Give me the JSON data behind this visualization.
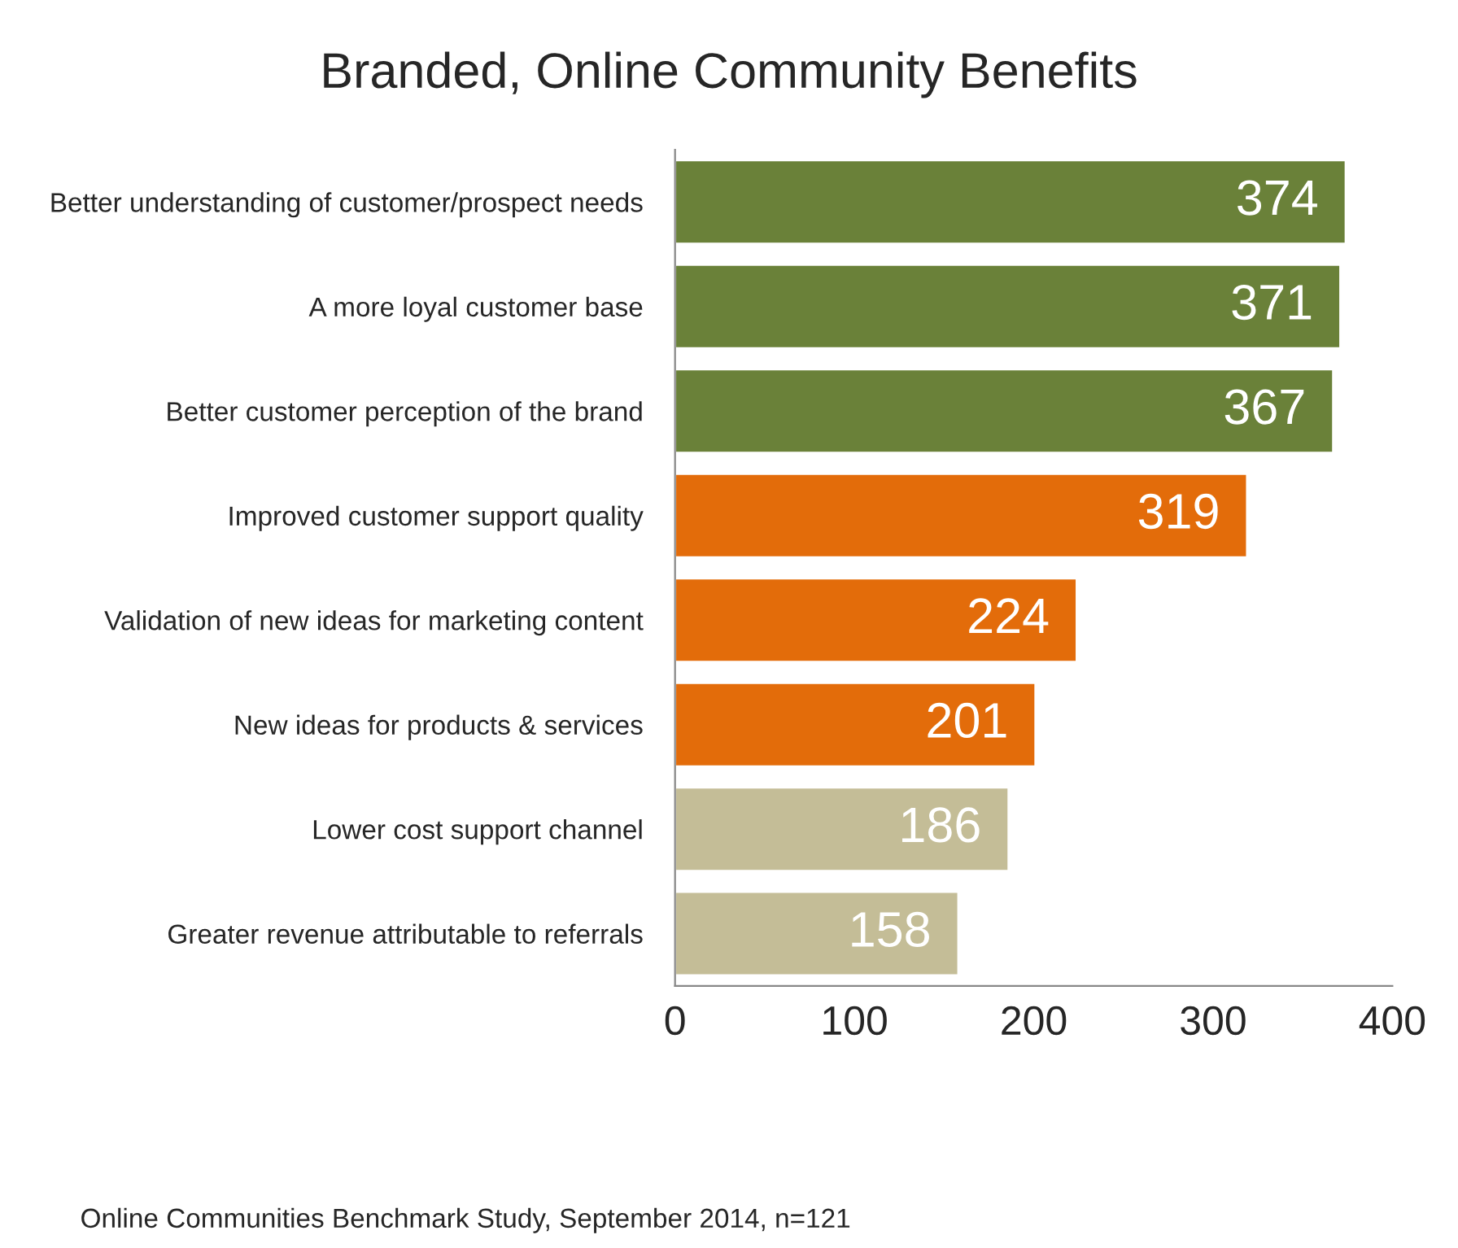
{
  "chart_data": {
    "type": "bar",
    "orientation": "horizontal",
    "title": "Branded, Online Community Benefits",
    "categories": [
      "Better understanding of customer/prospect needs",
      "A more loyal customer base",
      "Better customer perception of the brand",
      "Improved customer support quality",
      "Validation of new ideas for marketing content",
      "New ideas for products & services",
      "Lower cost support channel",
      "Greater revenue attributable to referrals"
    ],
    "values": [
      374,
      371,
      367,
      319,
      224,
      201,
      186,
      158
    ],
    "colors": [
      "#6a8139",
      "#6a8139",
      "#6a8139",
      "#e36c0a",
      "#e36c0a",
      "#e36c0a",
      "#c4bd97",
      "#c4bd97"
    ],
    "xlim": [
      0,
      400
    ],
    "xticks": [
      0,
      100,
      200,
      300,
      400
    ],
    "grid": false,
    "data_labels": true,
    "annotations": [
      "Online Communities Benchmark Study, September 2014, n=121"
    ]
  }
}
